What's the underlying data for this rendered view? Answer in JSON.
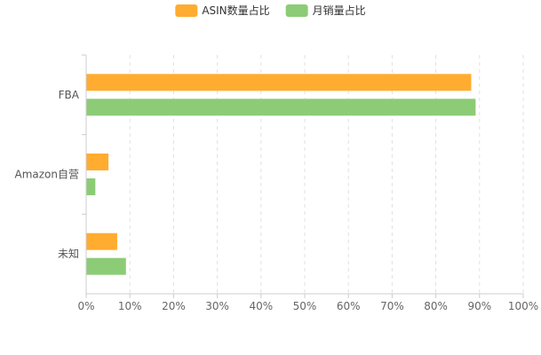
{
  "chart_data": {
    "type": "bar",
    "orientation": "horizontal",
    "categories": [
      "FBA",
      "Amazon自营",
      "未知"
    ],
    "series": [
      {
        "name": "ASIN数量占比",
        "color": "#FFAC30",
        "values": [
          88,
          5,
          7
        ]
      },
      {
        "name": "月销量占比",
        "color": "#8CCC76",
        "values": [
          89,
          2,
          9
        ]
      }
    ],
    "xlim": [
      0,
      100
    ],
    "x_ticks": [
      0,
      10,
      20,
      30,
      40,
      50,
      60,
      70,
      80,
      90,
      100
    ],
    "x_tick_suffix": "%",
    "x_tick_labels": [
      "0%",
      "10%",
      "20%",
      "30%",
      "40%",
      "50%",
      "60%",
      "70%",
      "80%",
      "90%",
      "100%"
    ],
    "grid": "vertical-dashed",
    "legend_position": "top-center"
  }
}
